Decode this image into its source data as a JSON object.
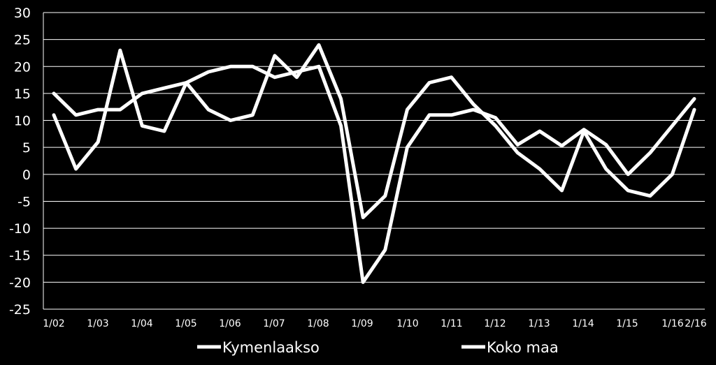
{
  "chart_data": {
    "type": "line",
    "title": "",
    "xlabel": "",
    "ylabel": "",
    "ylim": [
      -25,
      30
    ],
    "yticks": [
      30,
      25,
      20,
      15,
      10,
      5,
      0,
      -5,
      -10,
      -15,
      -20,
      -25
    ],
    "grid": true,
    "legend_position": "bottom",
    "x_tick_labels": [
      "1/02",
      "1/03",
      "1/04",
      "1/05",
      "1/06",
      "1/07",
      "1/08",
      "1/09",
      "1/10",
      "1/11",
      "1/12",
      "1/13",
      "1/14",
      "1/15",
      "1/16",
      "2/16"
    ],
    "series": [
      {
        "name": "Kymenlaakso",
        "color": "#ffffff",
        "values": [
          11,
          1,
          6,
          23,
          9,
          8,
          17,
          12,
          10,
          11,
          22,
          18,
          24,
          14,
          -8,
          -4,
          12,
          17,
          18,
          13,
          9,
          4,
          1,
          -3,
          8,
          1,
          -3,
          -4,
          0,
          12
        ]
      },
      {
        "name": "Koko maa",
        "color": "#ffffff",
        "values": [
          15,
          11,
          12,
          12,
          15,
          16,
          17,
          19,
          20,
          20,
          18,
          19,
          20,
          9,
          -20,
          -14,
          5,
          11,
          11,
          12,
          10.5,
          5.5,
          8,
          5.3,
          8.3,
          5.5,
          0,
          4,
          9,
          14
        ]
      }
    ]
  }
}
